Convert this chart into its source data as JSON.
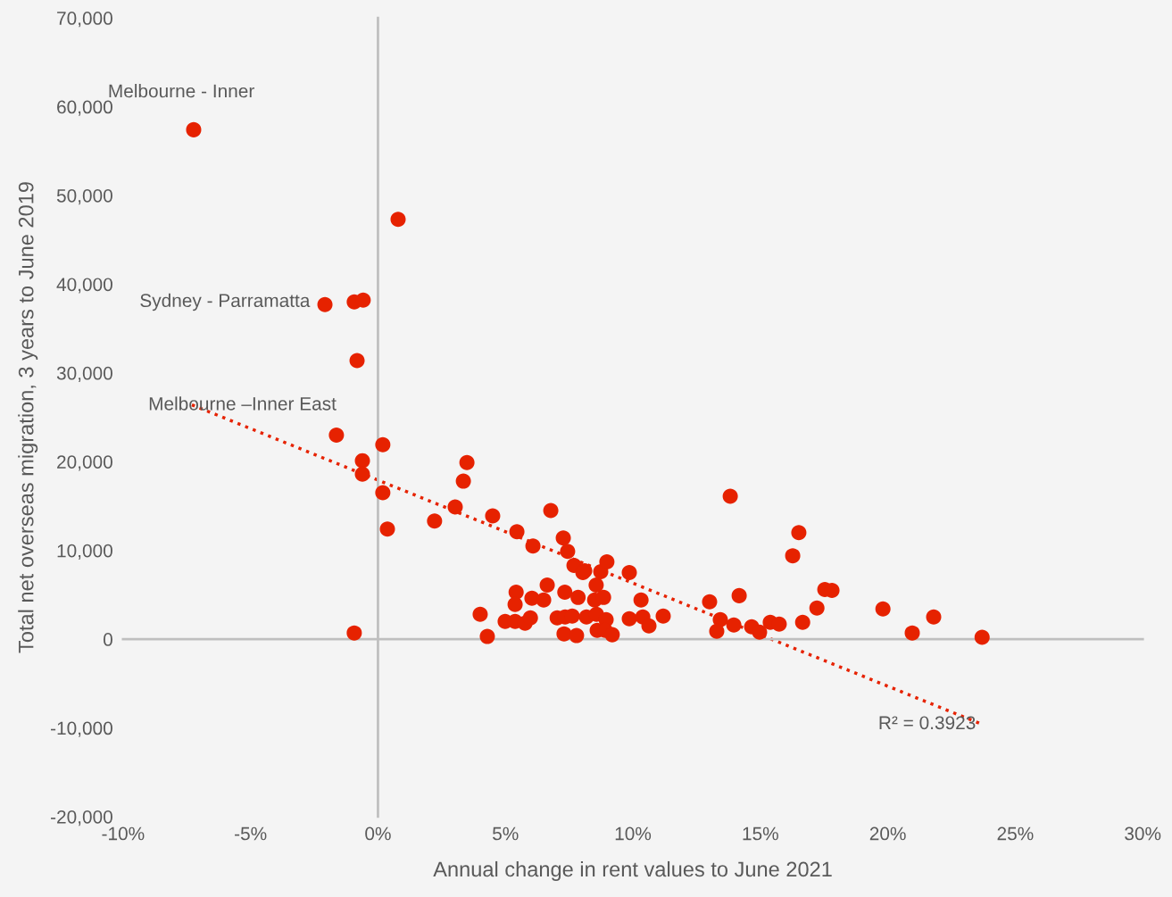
{
  "chart_data": {
    "type": "scatter",
    "xlabel": "Annual change in rent values to June 2021",
    "ylabel": "Total net overseas migration, 3 years to June 2019",
    "xlim": [
      -10,
      30
    ],
    "xticks": [
      {
        "value": -10,
        "label": "-10%"
      },
      {
        "value": -5,
        "label": "-5%"
      },
      {
        "value": 0,
        "label": "0%"
      },
      {
        "value": 5,
        "label": "5%"
      },
      {
        "value": 10,
        "label": "10%"
      },
      {
        "value": 15,
        "label": "15%"
      },
      {
        "value": 20,
        "label": "20%"
      },
      {
        "value": 25,
        "label": "25%"
      },
      {
        "value": 30,
        "label": "30%"
      }
    ],
    "ylim": [
      -20000,
      70000
    ],
    "yticks": [
      {
        "value": -20000,
        "label": "-20,000"
      },
      {
        "value": -10000,
        "label": "-10,000"
      },
      {
        "value": 0,
        "label": "0"
      },
      {
        "value": 10000,
        "label": "10,000"
      },
      {
        "value": 20000,
        "label": "20,000"
      },
      {
        "value": 30000,
        "label": "30,000"
      },
      {
        "value": 40000,
        "label": "40,000"
      },
      {
        "value": 50000,
        "label": "50,000"
      },
      {
        "value": 60000,
        "label": "60,000"
      },
      {
        "value": 70000,
        "label": "70,000"
      }
    ],
    "legend": false,
    "series": [
      {
        "color": "#e62200",
        "marker": "circle",
        "x": [
          -7.23,
          0.79,
          -2.08,
          -0.93,
          -0.58,
          -0.82,
          -1.63,
          -0.61,
          -0.61,
          0.19,
          0.19,
          0.37,
          -0.93,
          2.22,
          3.03,
          3.35,
          3.49,
          4.5,
          4.01,
          4.29,
          5.45,
          6.08,
          6.78,
          7.27,
          7.44,
          7.69,
          8.11,
          8.56,
          8.74,
          8.98,
          9.86,
          6.64,
          8.04,
          5.42,
          5.38,
          6.04,
          6.5,
          7.33,
          7.85,
          8.5,
          8.85,
          10.32,
          4.99,
          5.38,
          5.77,
          5.98,
          7.03,
          7.34,
          7.62,
          7.3,
          7.79,
          8.18,
          8.57,
          8.95,
          8.6,
          8.91,
          9.19,
          9.86,
          10.39,
          10.63,
          11.19,
          13.82,
          16.51,
          16.27,
          17.53,
          17.81,
          17.22,
          16.66,
          13.01,
          14.17,
          13.43,
          13.29,
          13.96,
          14.66,
          14.97,
          15.39,
          15.74,
          19.81,
          20.96,
          21.8,
          23.7
        ],
        "values": [
          57400,
          47300,
          37700,
          38000,
          38200,
          31400,
          23000,
          20100,
          18600,
          21900,
          16500,
          12400,
          700,
          13300,
          14900,
          17800,
          19900,
          13900,
          2800,
          300,
          12100,
          10500,
          14500,
          11400,
          9900,
          8300,
          7700,
          6100,
          7600,
          8700,
          7500,
          6100,
          7500,
          5300,
          3900,
          4600,
          4400,
          5300,
          4700,
          4400,
          4700,
          4400,
          2000,
          2000,
          1800,
          2400,
          2400,
          2500,
          2600,
          600,
          400,
          2500,
          2800,
          2200,
          1000,
          1000,
          500,
          2300,
          2500,
          1500,
          2600,
          16100,
          12000,
          9400,
          5600,
          5500,
          3500,
          1900,
          4200,
          4900,
          2200,
          900,
          1600,
          1400,
          800,
          1900,
          1700,
          3400,
          700,
          2500,
          200
        ]
      },
      {
        "type": "line",
        "color": "#e62200",
        "marker": "none",
        "line_style": "dotted",
        "x": [
          -7.3,
          23.7
        ],
        "values": [
          26400,
          -9600
        ]
      }
    ],
    "annotations": [
      {
        "text": "Melbourne - Inner",
        "x": -7.23,
        "y": 57400
      },
      {
        "text": "Sydney - Parramatta",
        "x": -2.08,
        "y": 37700
      },
      {
        "text": "Melbourne –Inner East",
        "x": -1.63,
        "y": 23000
      },
      {
        "text": "R² = 0.3923",
        "x": 23.7,
        "y": -9600
      }
    ]
  }
}
